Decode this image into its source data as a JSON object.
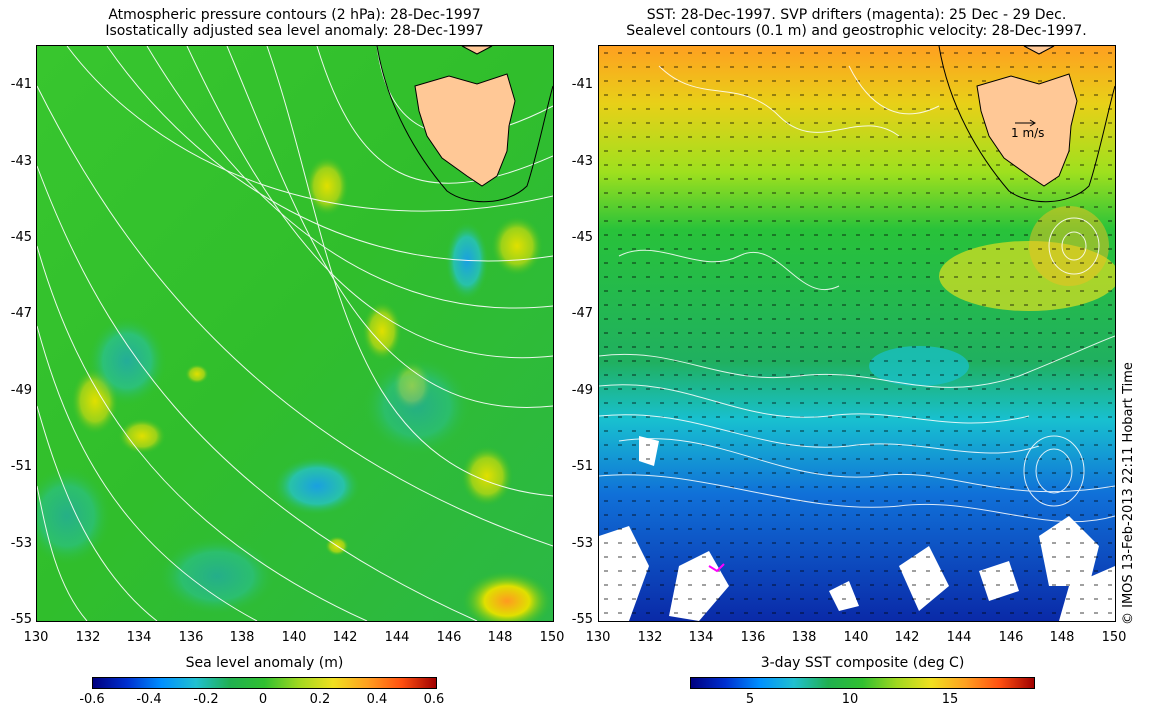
{
  "left_panel": {
    "title_line1": "Atmospheric pressure contours (2 hPa): 28-Dec-1997",
    "title_line2": "Isostatically adjusted sea level anomaly: 28-Dec-1997",
    "colorbar_title": "Sea level anomaly (m)",
    "colorbar_labels": [
      "-0.6",
      "-0.4",
      "-0.2",
      "0",
      "0.2",
      "0.4",
      "0.6"
    ],
    "colors": {
      "low": "#00007f",
      "mid": "#1fa03c",
      "high": "#a00000"
    }
  },
  "right_panel": {
    "title_line1": "SST: 28-Dec-1997. SVP drifters (magenta): 25 Dec - 29 Dec.",
    "title_line2": "Sealevel contours (0.1 m) and geostrophic velocity: 28-Dec-1997.",
    "colorbar_title": "3-day SST composite (deg C)",
    "colorbar_labels": [
      "5",
      "10",
      "15"
    ],
    "velocity_scale_label": "1 m/s",
    "colors": {
      "cold": "#00007f",
      "warm": "#ff8000"
    }
  },
  "axes": {
    "y_ticks": [
      "-41",
      "-43",
      "-45",
      "-47",
      "-49",
      "-51",
      "-53",
      "-55"
    ],
    "x_ticks": [
      "130",
      "132",
      "134",
      "136",
      "138",
      "140",
      "142",
      "144",
      "146",
      "148",
      "150"
    ]
  },
  "land_color": "#ffc896",
  "credit": "© IMOS 13-Feb-2013 22:11 Hobart Time"
}
